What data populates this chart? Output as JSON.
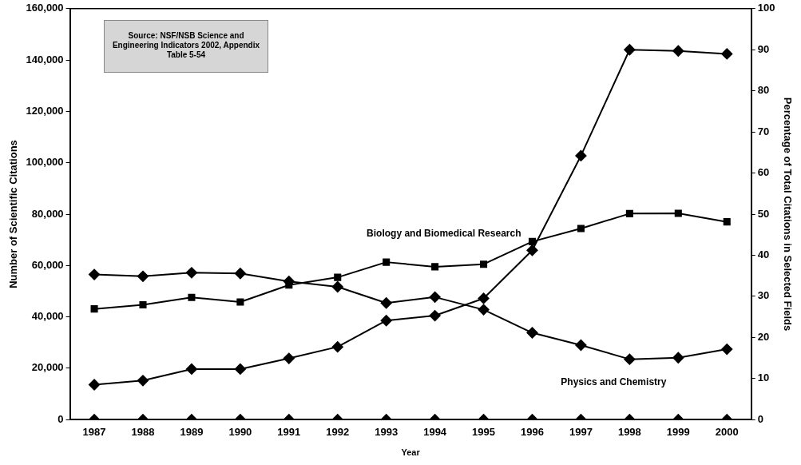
{
  "chart_data": {
    "type": "line",
    "xlabel": "Year",
    "ylabel": "Number of Scientific Citations",
    "y2label": "Percentage of Total Citations in Selected Fields",
    "categories": [
      "1987",
      "1988",
      "1989",
      "1990",
      "1991",
      "1992",
      "1993",
      "1994",
      "1995",
      "1996",
      "1997",
      "1998",
      "1999",
      "2000"
    ],
    "series": [
      {
        "name": "Biology and Biomedical Research",
        "color": "#000000",
        "marker": "square",
        "values": [
          43100,
          44700,
          47600,
          45800,
          52400,
          55400,
          61300,
          59500,
          60500,
          69300,
          74400,
          80200,
          80300,
          77000
        ]
      },
      {
        "name": "Physics and Chemistry",
        "color": "#000000",
        "marker": "diamond",
        "values": [
          56500,
          55800,
          57200,
          56900,
          53800,
          51700,
          45400,
          47700,
          42800,
          33800,
          29000,
          23500,
          24100,
          27400
        ]
      },
      {
        "color": "#000000",
        "marker": "diamond",
        "axis": "y2",
        "values": [
          8.5,
          9.5,
          12.3,
          12.3,
          14.9,
          17.7,
          24.1,
          25.3,
          29.5,
          41.2,
          64.2,
          90,
          89.7,
          89
        ]
      },
      {
        "type": "scatter",
        "color": "#000000",
        "marker": "diamond",
        "values": [
          0,
          0,
          0,
          0,
          0,
          0,
          0,
          0,
          0,
          0,
          0,
          0,
          0,
          0
        ]
      }
    ],
    "ylim": [
      0,
      160000
    ],
    "yticks": [
      {
        "value": 0,
        "label": "0"
      },
      {
        "value": 20000,
        "label": "20,000"
      },
      {
        "value": 40000,
        "label": "40,000"
      },
      {
        "value": 60000,
        "label": "60,000"
      },
      {
        "value": 80000,
        "label": "80,000"
      },
      {
        "value": 100000,
        "label": "100,000"
      },
      {
        "value": 120000,
        "label": "120,000"
      },
      {
        "value": 140000,
        "label": "140,000"
      },
      {
        "value": 160000,
        "label": "160,000"
      }
    ],
    "y2lim": [
      0,
      100
    ],
    "y2ticks": [
      0,
      10,
      20,
      30,
      40,
      50,
      60,
      70,
      80,
      90,
      100
    ],
    "annotations": [
      "Source: NSF/NSB Science and Engineering Indicators 2002, Appendix Table 5-54"
    ],
    "grid": false,
    "legend": false,
    "line_style": "solid"
  }
}
